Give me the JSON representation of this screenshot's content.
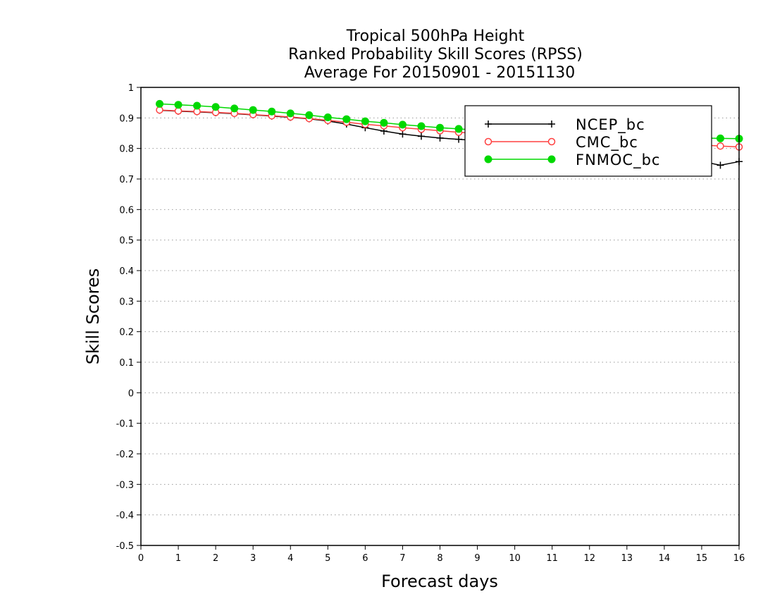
{
  "chart_data": {
    "type": "line",
    "title": [
      "Tropical 500hPa Height",
      "Ranked Probability Skill Scores (RPSS)",
      "Average For 20150901 - 20151130"
    ],
    "xlabel": "Forecast days",
    "ylabel": "Skill Scores",
    "xlim": [
      0,
      16
    ],
    "ylim": [
      -0.5,
      1
    ],
    "xticks": [
      "0",
      "1",
      "2",
      "3",
      "4",
      "5",
      "6",
      "7",
      "8",
      "9",
      "10",
      "11",
      "12",
      "13",
      "14",
      "15",
      "16"
    ],
    "yticks": [
      "1",
      "0.9",
      "0.8",
      "0.7",
      "0.6",
      "0.5",
      "0.4",
      "0.3",
      "0.2",
      "0.1",
      "0",
      "-0.1",
      "-0.2",
      "-0.3",
      "-0.4",
      "-0.5"
    ],
    "ytick_values": [
      1,
      0.9,
      0.8,
      0.7,
      0.6,
      0.5,
      0.4,
      0.3,
      0.2,
      0.1,
      0,
      -0.1,
      -0.2,
      -0.3,
      -0.4,
      -0.5
    ],
    "grid": "horizontal-dotted",
    "legend_position": "top-right",
    "x": [
      0.5,
      1,
      1.5,
      2,
      2.5,
      3,
      3.5,
      4,
      4.5,
      5,
      5.5,
      6,
      6.5,
      7,
      7.5,
      8,
      8.5,
      9,
      9.5,
      10,
      10.5,
      11,
      11.5,
      12,
      12.5,
      13,
      13.5,
      14,
      14.5,
      15,
      15.5,
      16
    ],
    "series": [
      {
        "name": "NCEP_bc",
        "color": "#000000",
        "marker": "plus",
        "values": [
          0.925,
          0.922,
          0.92,
          0.917,
          0.914,
          0.91,
          0.906,
          0.902,
          0.897,
          0.89,
          0.88,
          0.868,
          0.857,
          0.847,
          0.84,
          0.834,
          0.83,
          0.826,
          0.823,
          0.82,
          0.817,
          0.813,
          0.809,
          0.804,
          0.798,
          0.792,
          0.786,
          0.778,
          0.769,
          0.758,
          0.745,
          0.757
        ]
      },
      {
        "name": "CMC_bc",
        "color": "#ff4040",
        "marker": "open-circle",
        "values": [
          0.926,
          0.923,
          0.921,
          0.918,
          0.915,
          0.911,
          0.907,
          0.903,
          0.898,
          0.892,
          0.886,
          0.879,
          0.874,
          0.868,
          0.863,
          0.858,
          0.853,
          0.849,
          0.845,
          0.841,
          0.838,
          0.835,
          0.832,
          0.829,
          0.826,
          0.823,
          0.82,
          0.817,
          0.814,
          0.811,
          0.808,
          0.805
        ]
      },
      {
        "name": "FNMOC_bc",
        "color": "#00d800",
        "marker": "filled-circle",
        "values": [
          0.946,
          0.943,
          0.94,
          0.936,
          0.931,
          0.926,
          0.921,
          0.915,
          0.909,
          0.902,
          0.896,
          0.889,
          0.884,
          0.878,
          0.873,
          0.868,
          0.864,
          0.86,
          0.857,
          0.854,
          0.851,
          0.848,
          0.846,
          0.844,
          0.842,
          0.84,
          0.838,
          0.836,
          0.835,
          0.834,
          0.833,
          0.832
        ]
      }
    ]
  }
}
